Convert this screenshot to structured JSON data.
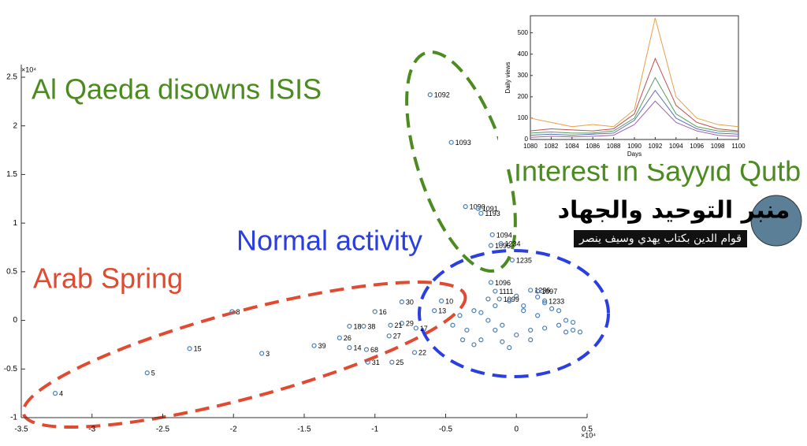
{
  "chart_data": [
    {
      "type": "scatter",
      "xlim": [
        -3.5,
        0.5
      ],
      "xticks": [
        -3.5,
        -3,
        -2.5,
        -2,
        -1.5,
        -1,
        -0.5,
        0,
        0.5
      ],
      "ylim": [
        -1,
        2.5
      ],
      "yticks": [
        -1,
        -0.5,
        0,
        0.5,
        1,
        1.5,
        2,
        2.5
      ],
      "x_exponent": "×10⁴",
      "y_exponent": "×10⁴",
      "color": "#4a7fb5",
      "x": [
        -0.61,
        -0.46,
        -0.36,
        -0.27,
        -0.25,
        -0.17,
        -0.18,
        -0.11,
        -0.03,
        -0.18,
        -2.01,
        -2.31,
        -1.8,
        -2.61,
        -3.26,
        -1.43,
        -1.25,
        -1.18,
        -1.06,
        -1.05,
        -0.88,
        -0.72,
        -1.18,
        -1.08,
        -1.0,
        -0.81,
        -0.9,
        -0.81,
        -0.89,
        -0.71,
        -0.58,
        -0.53,
        -0.15,
        0.1,
        0.2,
        0.15,
        -0.12,
        -0.4,
        -0.35,
        -0.3,
        -0.25,
        -0.2,
        -0.15,
        -0.1,
        -0.05,
        0.0,
        0.05,
        0.1,
        0.15,
        0.2,
        0.25,
        0.3,
        0.35,
        0.4,
        -0.3,
        -0.2,
        -0.1,
        0.0,
        0.1,
        0.2,
        0.3,
        0.4,
        -0.25,
        -0.05,
        0.15,
        0.35,
        -0.45,
        -0.38,
        0.45,
        0.05,
        -0.15
      ],
      "values": [
        2.32,
        1.83,
        1.17,
        1.15,
        1.1,
        0.88,
        0.77,
        0.79,
        0.62,
        0.39,
        0.09,
        -0.29,
        -0.34,
        -0.54,
        -0.75,
        -0.26,
        -0.18,
        -0.28,
        -0.3,
        -0.43,
        -0.43,
        -0.33,
        -0.06,
        -0.06,
        0.09,
        0.19,
        -0.16,
        -0.03,
        -0.05,
        -0.08,
        0.1,
        0.2,
        0.3,
        0.31,
        0.2,
        0.3,
        0.22,
        0.05,
        -0.1,
        0.1,
        -0.2,
        0.0,
        0.15,
        -0.05,
        0.2,
        -0.15,
        0.1,
        -0.1,
        0.05,
        -0.08,
        0.12,
        -0.05,
        -0.12,
        -0.1,
        -0.25,
        0.22,
        -0.22,
        0.25,
        -0.2,
        0.18,
        0.1,
        -0.02,
        0.08,
        -0.28,
        0.24,
        0.0,
        -0.05,
        -0.2,
        -0.12,
        0.15,
        -0.1
      ],
      "point_labels": [
        "1092",
        "1093",
        "1090",
        "1091",
        "1193",
        "1094",
        "1095",
        "1234",
        "1235",
        "1096",
        "8",
        "15",
        "3",
        "5",
        "4",
        "39",
        "26",
        "14",
        "68",
        "31",
        "25",
        "22",
        "18",
        "38",
        "16",
        "30",
        "27",
        "29",
        "21",
        "17",
        "13",
        "10",
        "1111",
        "1236",
        "1233",
        "1097",
        "1099",
        null,
        null,
        null,
        null,
        null,
        null,
        null,
        null,
        null,
        null,
        null,
        null,
        null,
        null,
        null,
        null,
        null,
        null,
        null,
        null,
        null,
        null,
        null,
        null,
        null,
        null,
        null,
        null,
        null,
        null,
        null,
        null,
        null,
        null
      ],
      "annotations": [
        "Al Qaeda disowns ISIS",
        "Interest in Sayyid Qutb",
        "Normal activity",
        "Arab Spring"
      ],
      "logo_text": [
        "منبر التوحيد والجهاد",
        "قوام الدين بكتاب يهدي وسيف ينصر"
      ]
    },
    {
      "type": "line",
      "x": [
        1080,
        1082,
        1084,
        1086,
        1088,
        1090,
        1092,
        1094,
        1096,
        1098,
        1100
      ],
      "xlim": [
        1080,
        1100
      ],
      "xticks": [
        1080,
        1082,
        1084,
        1086,
        1088,
        1090,
        1092,
        1094,
        1096,
        1098,
        1100
      ],
      "ylim": [
        0,
        580
      ],
      "yticks": [
        0,
        100,
        200,
        300,
        400,
        500
      ],
      "xlabel": "Days",
      "ylabel": "Daily views",
      "series": [
        {
          "name": null,
          "color": "#e8a04a",
          "values": [
            100,
            80,
            60,
            70,
            60,
            140,
            570,
            200,
            100,
            70,
            60
          ]
        },
        {
          "name": null,
          "color": "#c05050",
          "values": [
            40,
            50,
            45,
            40,
            50,
            120,
            380,
            160,
            80,
            50,
            40
          ]
        },
        {
          "name": null,
          "color": "#5a9a5a",
          "values": [
            30,
            35,
            30,
            30,
            40,
            100,
            290,
            120,
            60,
            40,
            35
          ]
        },
        {
          "name": null,
          "color": "#5a70c0",
          "values": [
            20,
            25,
            20,
            25,
            30,
            90,
            230,
            100,
            50,
            30,
            25
          ]
        },
        {
          "name": null,
          "color": "#a060b0",
          "values": [
            10,
            15,
            12,
            15,
            20,
            70,
            180,
            80,
            40,
            20,
            15
          ]
        }
      ]
    }
  ]
}
